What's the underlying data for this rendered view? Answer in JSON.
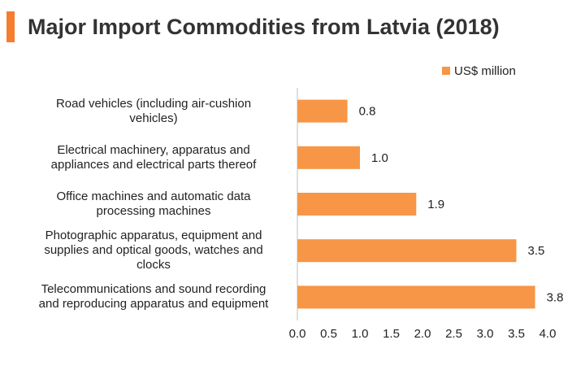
{
  "title": "Major Import Commodities from Latvia (2018)",
  "colors": {
    "accent": "#f47d30",
    "bar": "#f79646",
    "axis": "#bfbfbf"
  },
  "chart_data": {
    "type": "bar",
    "orientation": "horizontal",
    "title": "Major Import Commodities from Latvia (2018)",
    "categories": [
      "Road vehicles (including air-cushion vehicles)",
      "Electrical machinery, apparatus and appliances and electrical parts thereof",
      "Office machines and automatic data processing machines",
      "Photographic apparatus, equipment and supplies and optical goods, watches and clocks",
      "Telecommunications and sound recording and reproducing apparatus and equipment"
    ],
    "category_lines": [
      [
        "Road vehicles (including air-cushion",
        "vehicles)"
      ],
      [
        "Electrical machinery, apparatus and",
        "appliances and electrical parts thereof"
      ],
      [
        "Office machines and automatic data",
        "processing machines"
      ],
      [
        "Photographic apparatus, equipment and",
        "supplies and optical goods, watches and",
        "clocks"
      ],
      [
        "Telecommunications and sound recording",
        "and reproducing apparatus and equipment"
      ]
    ],
    "series": [
      {
        "name": "US$ million",
        "values": [
          0.8,
          1.0,
          1.9,
          3.5,
          3.8
        ],
        "labels": [
          "0.8",
          "1.0",
          "1.9",
          "3.5",
          "3.8"
        ]
      }
    ],
    "xlim": [
      0,
      4.0
    ],
    "xticks": [
      "0.0",
      "0.5",
      "1.0",
      "1.5",
      "2.0",
      "2.5",
      "3.0",
      "3.5",
      "4.0"
    ],
    "xlabel": "",
    "ylabel": "",
    "grid": false,
    "legend_position": "top-right"
  }
}
